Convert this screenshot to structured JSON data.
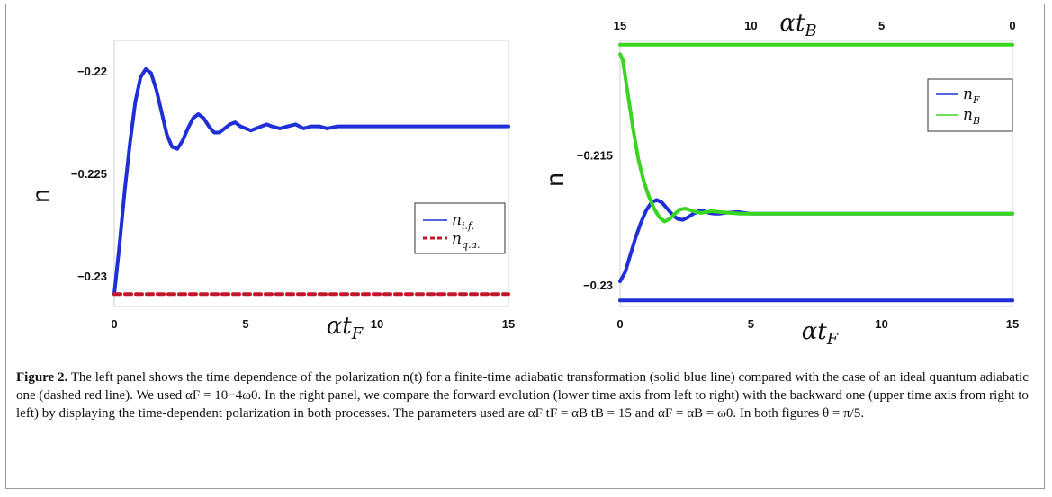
{
  "figure": {
    "caption_label": "Figure 2.",
    "caption_text": " The left panel shows the time dependence of the polarization n(t) for a finite-time adiabatic transformation (solid blue line) compared with the case of an ideal quantum adiabatic one (dashed red line). We used αF = 10−4ω0. In the right panel, we compare the forward evolution (lower time axis from left to right) with the backward one (upper time axis from right to left) by displaying the time-dependent polarization in both processes. The parameters used are αF tF = αB tB = 15 and αF = αB = ω0. In both figures θ = π/5."
  },
  "chart_data": [
    {
      "type": "line",
      "ylabel": "n",
      "xlabel": "αtF",
      "xlim": [
        0,
        15
      ],
      "ylim": [
        -0.2315,
        -0.2185
      ],
      "x_ticks": [
        "0",
        "5",
        "10",
        "15"
      ],
      "y_ticks": [
        "−0.22",
        "−0.225",
        "−0.23"
      ],
      "legend": {
        "position": "lower-right",
        "entries": [
          "ni.f.",
          "nq.a."
        ]
      },
      "series": [
        {
          "name": "ni.f.",
          "color": "#1f2fd6",
          "style": "solid",
          "x": [
            0,
            0.2,
            0.4,
            0.6,
            0.8,
            1.0,
            1.2,
            1.4,
            1.6,
            1.8,
            2.0,
            2.2,
            2.4,
            2.6,
            2.8,
            3.0,
            3.2,
            3.4,
            3.6,
            3.8,
            4.0,
            4.2,
            4.4,
            4.6,
            4.8,
            5.0,
            5.2,
            5.4,
            5.6,
            5.8,
            6.0,
            6.3,
            6.6,
            6.9,
            7.2,
            7.5,
            7.8,
            8.1,
            8.5,
            9.0,
            10,
            12,
            15
          ],
          "y": [
            -0.2309,
            -0.2285,
            -0.2258,
            -0.2235,
            -0.2215,
            -0.2203,
            -0.2199,
            -0.2201,
            -0.2209,
            -0.222,
            -0.2231,
            -0.2237,
            -0.2238,
            -0.2234,
            -0.2228,
            -0.2223,
            -0.2221,
            -0.2223,
            -0.2227,
            -0.223,
            -0.223,
            -0.2228,
            -0.2226,
            -0.2225,
            -0.2227,
            -0.2228,
            -0.2229,
            -0.2228,
            -0.2227,
            -0.2226,
            -0.2227,
            -0.2228,
            -0.2227,
            -0.2226,
            -0.2228,
            -0.2227,
            -0.2227,
            -0.2228,
            -0.2227,
            -0.2227,
            -0.2227,
            -0.2227,
            -0.2227
          ]
        },
        {
          "name": "nq.a.",
          "color": "#c0182a",
          "style": "dashed",
          "x": [
            0,
            15
          ],
          "y": [
            -0.2309,
            -0.2309
          ]
        }
      ]
    },
    {
      "type": "line",
      "ylabel": "n",
      "xlabel": "αtF",
      "x2label": "αtB",
      "xlim": [
        0,
        15
      ],
      "ylim": [
        -0.2325,
        -0.2018
      ],
      "x_ticks": [
        "0",
        "5",
        "10",
        "15"
      ],
      "x2_ticks": [
        "15",
        "10",
        "5",
        "0"
      ],
      "y_ticks": [
        "−0.215",
        "−0.23"
      ],
      "legend": {
        "position": "top-right",
        "entries": [
          "nF",
          "nB"
        ]
      },
      "series": [
        {
          "name": "nF",
          "color": "#1f2fd6",
          "style": "solid",
          "x": [
            0,
            0.2,
            0.4,
            0.6,
            0.8,
            1.0,
            1.2,
            1.4,
            1.6,
            1.8,
            2.0,
            2.2,
            2.4,
            2.6,
            2.8,
            3.0,
            3.2,
            3.4,
            3.6,
            3.8,
            4.0,
            4.5,
            5.0,
            6,
            8,
            10,
            12,
            15
          ],
          "y": [
            -0.2296,
            -0.2285,
            -0.2265,
            -0.2245,
            -0.2228,
            -0.2214,
            -0.2205,
            -0.2202,
            -0.2205,
            -0.2212,
            -0.2219,
            -0.2224,
            -0.2225,
            -0.2222,
            -0.2218,
            -0.2215,
            -0.2215,
            -0.2217,
            -0.2218,
            -0.2218,
            -0.2217,
            -0.2216,
            -0.2218,
            -0.2218,
            -0.2218,
            -0.2218,
            -0.2218,
            -0.2218
          ]
        },
        {
          "name": "nB",
          "color": "#39d61f",
          "style": "solid",
          "x": [
            0,
            0.1,
            0.3,
            0.5,
            0.7,
            0.9,
            1.1,
            1.3,
            1.5,
            1.7,
            1.9,
            2.1,
            2.3,
            2.5,
            2.7,
            2.9,
            3.1,
            3.3,
            3.5,
            3.8,
            4.2,
            4.6,
            5.0,
            6,
            8,
            10,
            12,
            15
          ],
          "y": [
            -0.2034,
            -0.204,
            -0.208,
            -0.212,
            -0.2155,
            -0.218,
            -0.2198,
            -0.2212,
            -0.2222,
            -0.2227,
            -0.2224,
            -0.2218,
            -0.2213,
            -0.2212,
            -0.2214,
            -0.2216,
            -0.2217,
            -0.2216,
            -0.2215,
            -0.2216,
            -0.2217,
            -0.2218,
            -0.2218,
            -0.2218,
            -0.2218,
            -0.2218,
            -0.2218,
            -0.2218
          ]
        },
        {
          "name": "nF",
          "color": "#1f2fd6",
          "style": "solid",
          "x": [
            0,
            15
          ],
          "y": [
            -0.2318,
            -0.2318
          ]
        },
        {
          "name": "nB",
          "color": "#39d61f",
          "style": "solid",
          "x": [
            0,
            15
          ],
          "y": [
            -0.2023,
            -0.2023
          ]
        }
      ]
    }
  ]
}
